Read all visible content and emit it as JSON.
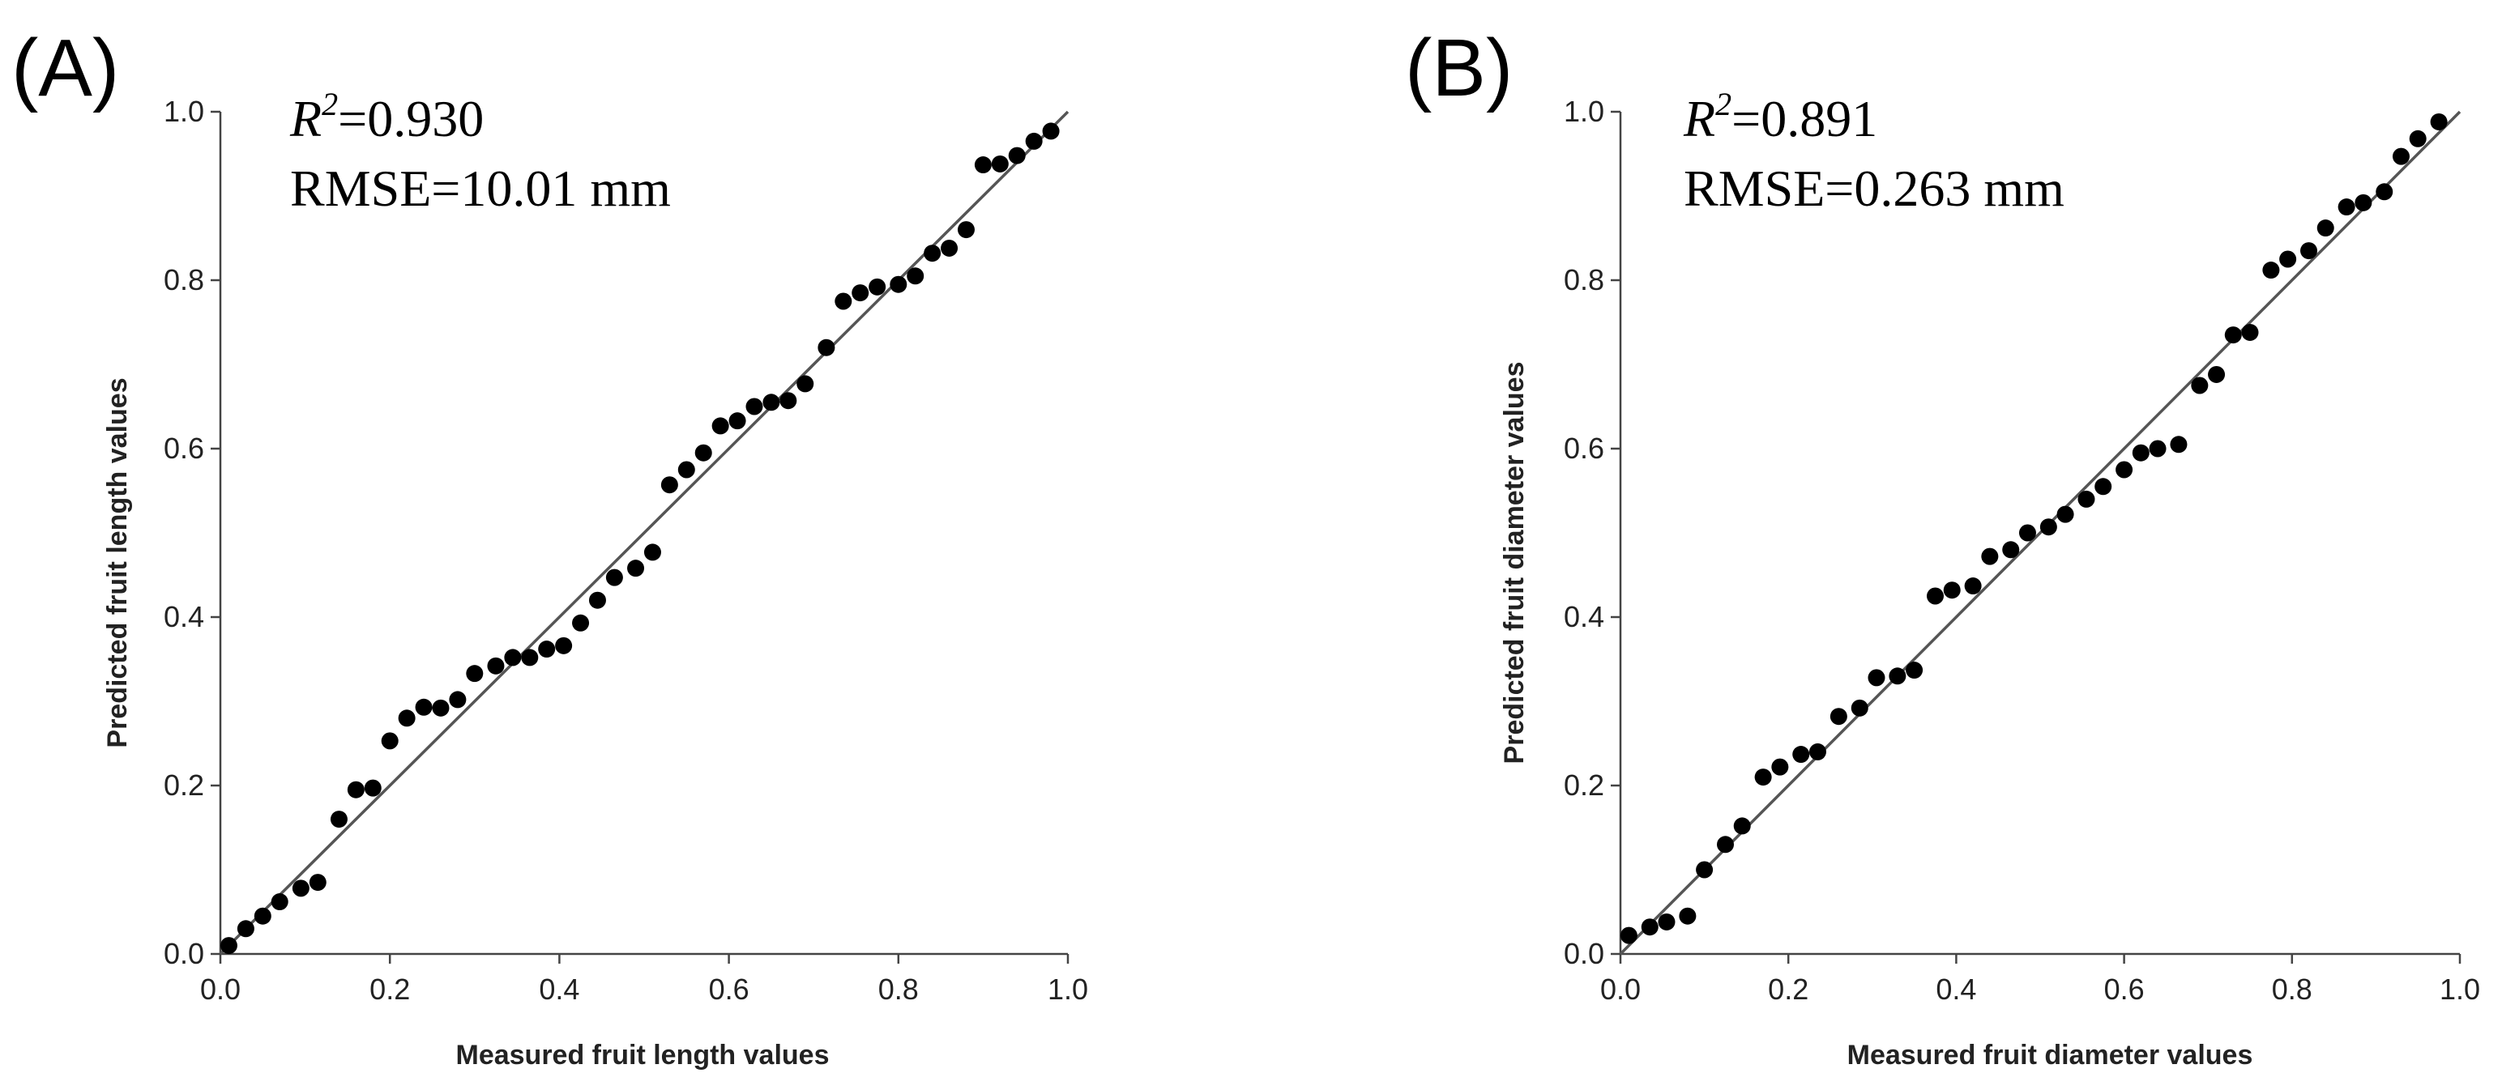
{
  "chart_data": [
    {
      "type": "scatter",
      "panel_label": "(A)",
      "r2_prefix": "R",
      "r2_sup": "2",
      "r2_value": "=0.930",
      "rmse_text": "RMSE=10.01 mm",
      "xlabel": "Measured fruit length values",
      "ylabel": "Predicted fruit length values",
      "xlim": [
        0,
        1
      ],
      "ylim": [
        0,
        1
      ],
      "xticks": [
        "0.0",
        "0.2",
        "0.4",
        "0.6",
        "0.8",
        "1.0"
      ],
      "yticks": [
        "0.0",
        "0.2",
        "0.4",
        "0.6",
        "0.8",
        "1.0"
      ],
      "fit_line": [
        [
          0,
          0
        ],
        [
          1,
          1
        ]
      ],
      "points": [
        [
          0.01,
          0.01
        ],
        [
          0.03,
          0.03
        ],
        [
          0.05,
          0.045
        ],
        [
          0.07,
          0.062
        ],
        [
          0.095,
          0.078
        ],
        [
          0.115,
          0.085
        ],
        [
          0.14,
          0.16
        ],
        [
          0.16,
          0.195
        ],
        [
          0.18,
          0.197
        ],
        [
          0.2,
          0.253
        ],
        [
          0.22,
          0.28
        ],
        [
          0.24,
          0.293
        ],
        [
          0.26,
          0.292
        ],
        [
          0.28,
          0.302
        ],
        [
          0.3,
          0.333
        ],
        [
          0.325,
          0.342
        ],
        [
          0.345,
          0.352
        ],
        [
          0.365,
          0.352
        ],
        [
          0.385,
          0.362
        ],
        [
          0.405,
          0.366
        ],
        [
          0.425,
          0.393
        ],
        [
          0.445,
          0.42
        ],
        [
          0.465,
          0.447
        ],
        [
          0.49,
          0.458
        ],
        [
          0.51,
          0.477
        ],
        [
          0.53,
          0.557
        ],
        [
          0.55,
          0.575
        ],
        [
          0.57,
          0.595
        ],
        [
          0.59,
          0.627
        ],
        [
          0.61,
          0.633
        ],
        [
          0.63,
          0.65
        ],
        [
          0.65,
          0.655
        ],
        [
          0.67,
          0.657
        ],
        [
          0.69,
          0.677
        ],
        [
          0.715,
          0.72
        ],
        [
          0.735,
          0.775
        ],
        [
          0.755,
          0.785
        ],
        [
          0.775,
          0.792
        ],
        [
          0.8,
          0.795
        ],
        [
          0.82,
          0.805
        ],
        [
          0.84,
          0.832
        ],
        [
          0.86,
          0.838
        ],
        [
          0.88,
          0.86
        ],
        [
          0.9,
          0.937
        ],
        [
          0.92,
          0.938
        ],
        [
          0.94,
          0.948
        ],
        [
          0.96,
          0.965
        ],
        [
          0.98,
          0.977
        ]
      ]
    },
    {
      "type": "scatter",
      "panel_label": "(B)",
      "r2_prefix": "R",
      "r2_sup": "2",
      "r2_value": "=0.891",
      "rmse_text": "RMSE=0.263 mm",
      "xlabel": "Measured fruit diameter values",
      "ylabel": "Predicted fruit diameter values",
      "xlim": [
        0,
        1
      ],
      "ylim": [
        0,
        1
      ],
      "xticks": [
        "0.0",
        "0.2",
        "0.4",
        "0.6",
        "0.8",
        "1.0"
      ],
      "yticks": [
        "0.0",
        "0.2",
        "0.4",
        "0.6",
        "0.8",
        "1.0"
      ],
      "fit_line": [
        [
          0,
          0
        ],
        [
          1,
          1
        ]
      ],
      "points": [
        [
          0.01,
          0.022
        ],
        [
          0.035,
          0.032
        ],
        [
          0.055,
          0.038
        ],
        [
          0.08,
          0.045
        ],
        [
          0.1,
          0.1
        ],
        [
          0.125,
          0.13
        ],
        [
          0.145,
          0.152
        ],
        [
          0.17,
          0.21
        ],
        [
          0.19,
          0.222
        ],
        [
          0.215,
          0.237
        ],
        [
          0.235,
          0.24
        ],
        [
          0.26,
          0.282
        ],
        [
          0.285,
          0.292
        ],
        [
          0.305,
          0.328
        ],
        [
          0.33,
          0.33
        ],
        [
          0.35,
          0.337
        ],
        [
          0.375,
          0.425
        ],
        [
          0.395,
          0.432
        ],
        [
          0.42,
          0.437
        ],
        [
          0.44,
          0.472
        ],
        [
          0.465,
          0.48
        ],
        [
          0.485,
          0.5
        ],
        [
          0.51,
          0.507
        ],
        [
          0.53,
          0.522
        ],
        [
          0.555,
          0.54
        ],
        [
          0.575,
          0.555
        ],
        [
          0.6,
          0.575
        ],
        [
          0.62,
          0.595
        ],
        [
          0.64,
          0.6
        ],
        [
          0.665,
          0.605
        ],
        [
          0.69,
          0.675
        ],
        [
          0.71,
          0.688
        ],
        [
          0.73,
          0.735
        ],
        [
          0.75,
          0.738
        ],
        [
          0.775,
          0.812
        ],
        [
          0.795,
          0.825
        ],
        [
          0.82,
          0.835
        ],
        [
          0.84,
          0.862
        ],
        [
          0.865,
          0.887
        ],
        [
          0.885,
          0.892
        ],
        [
          0.91,
          0.905
        ],
        [
          0.93,
          0.947
        ],
        [
          0.95,
          0.968
        ],
        [
          0.975,
          0.988
        ]
      ]
    }
  ]
}
